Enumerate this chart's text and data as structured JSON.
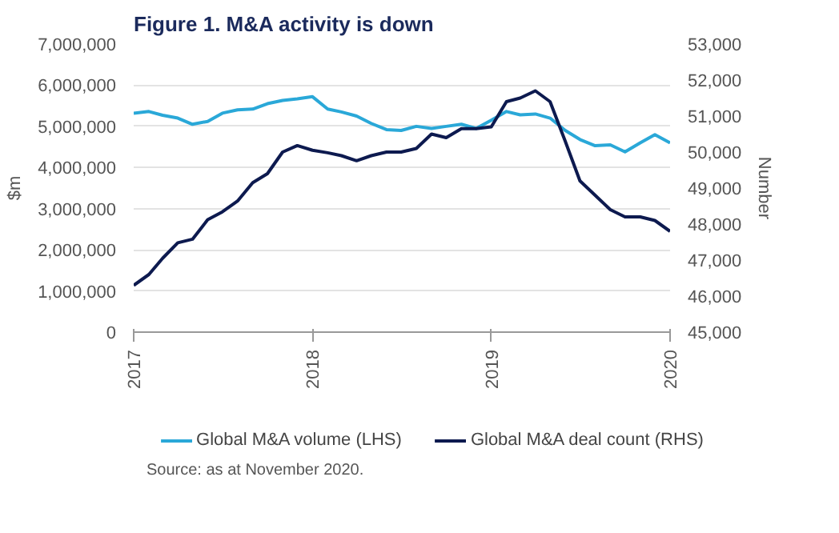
{
  "chart_data": {
    "type": "line",
    "title": "Figure 1. M&A activity is down",
    "ylabel": "$m",
    "y2label": "Number",
    "x": [
      "2017-01",
      "2017-02",
      "2017-03",
      "2017-04",
      "2017-05",
      "2017-06",
      "2017-07",
      "2017-08",
      "2017-09",
      "2017-10",
      "2017-11",
      "2017-12",
      "2018-01",
      "2018-02",
      "2018-03",
      "2018-04",
      "2018-05",
      "2018-06",
      "2018-07",
      "2018-08",
      "2018-09",
      "2018-10",
      "2018-11",
      "2018-12",
      "2019-01",
      "2019-02",
      "2019-03",
      "2019-04",
      "2019-05",
      "2019-06",
      "2019-07",
      "2019-08",
      "2019-09",
      "2019-10",
      "2019-11",
      "2019-12",
      "2020-01"
    ],
    "series": [
      {
        "name": "Global M&A volume (LHS)",
        "color": "#2aa8d8",
        "values": [
          5320000,
          5360000,
          5270000,
          5200000,
          5050000,
          5120000,
          5320000,
          5400000,
          5420000,
          5550000,
          5630000,
          5670000,
          5720000,
          5420000,
          5350000,
          5250000,
          5070000,
          4920000,
          4900000,
          5000000,
          4950000,
          5000000,
          5050000,
          4950000,
          5150000,
          5360000,
          5280000,
          5300000,
          5200000,
          4900000,
          4680000,
          4530000,
          4550000,
          4380000,
          4600000,
          4800000,
          4600000
        ]
      },
      {
        "name": "Global M&A deal count (RHS)",
        "color": "#0d1a4f",
        "axis": "y2",
        "values": [
          46300,
          46600,
          47050,
          47480,
          47580,
          48120,
          48340,
          48640,
          49150,
          49400,
          50000,
          50180,
          50050,
          49980,
          49900,
          49760,
          49900,
          50000,
          50000,
          50100,
          50500,
          50400,
          50650,
          50650,
          50700,
          51400,
          51500,
          51700,
          51400,
          50300,
          49200,
          48800,
          48400,
          48200,
          48200,
          48100,
          47800
        ]
      }
    ],
    "xlim": [
      "2017-01",
      "2020-01"
    ],
    "xticks": [
      {
        "value": "2017-01",
        "label": "2017"
      },
      {
        "value": "2018-01",
        "label": "2018"
      },
      {
        "value": "2019-01",
        "label": "2019"
      },
      {
        "value": "2020-01",
        "label": "2020"
      }
    ],
    "ylim": [
      0,
      7000000
    ],
    "yticks": [
      {
        "value": 0,
        "label": "0"
      },
      {
        "value": 1000000,
        "label": "1,000,000"
      },
      {
        "value": 2000000,
        "label": "2,000,000"
      },
      {
        "value": 3000000,
        "label": "3,000,000"
      },
      {
        "value": 4000000,
        "label": "4,000,000"
      },
      {
        "value": 5000000,
        "label": "5,000,000"
      },
      {
        "value": 6000000,
        "label": "6,000,000"
      },
      {
        "value": 7000000,
        "label": "7,000,000"
      }
    ],
    "y2lim": [
      45000,
      53000
    ],
    "y2ticks": [
      {
        "value": 45000,
        "label": "45,000"
      },
      {
        "value": 46000,
        "label": "46,000"
      },
      {
        "value": 47000,
        "label": "47,000"
      },
      {
        "value": 48000,
        "label": "48,000"
      },
      {
        "value": 49000,
        "label": "49,000"
      },
      {
        "value": 50000,
        "label": "50,000"
      },
      {
        "value": 51000,
        "label": "51,000"
      },
      {
        "value": 52000,
        "label": "52,000"
      },
      {
        "value": 53000,
        "label": "53,000"
      }
    ],
    "grid": "y",
    "legend": "bottom",
    "line_style": "solid",
    "marker": "none",
    "annotations": [
      "Source: as at November 2020."
    ]
  }
}
